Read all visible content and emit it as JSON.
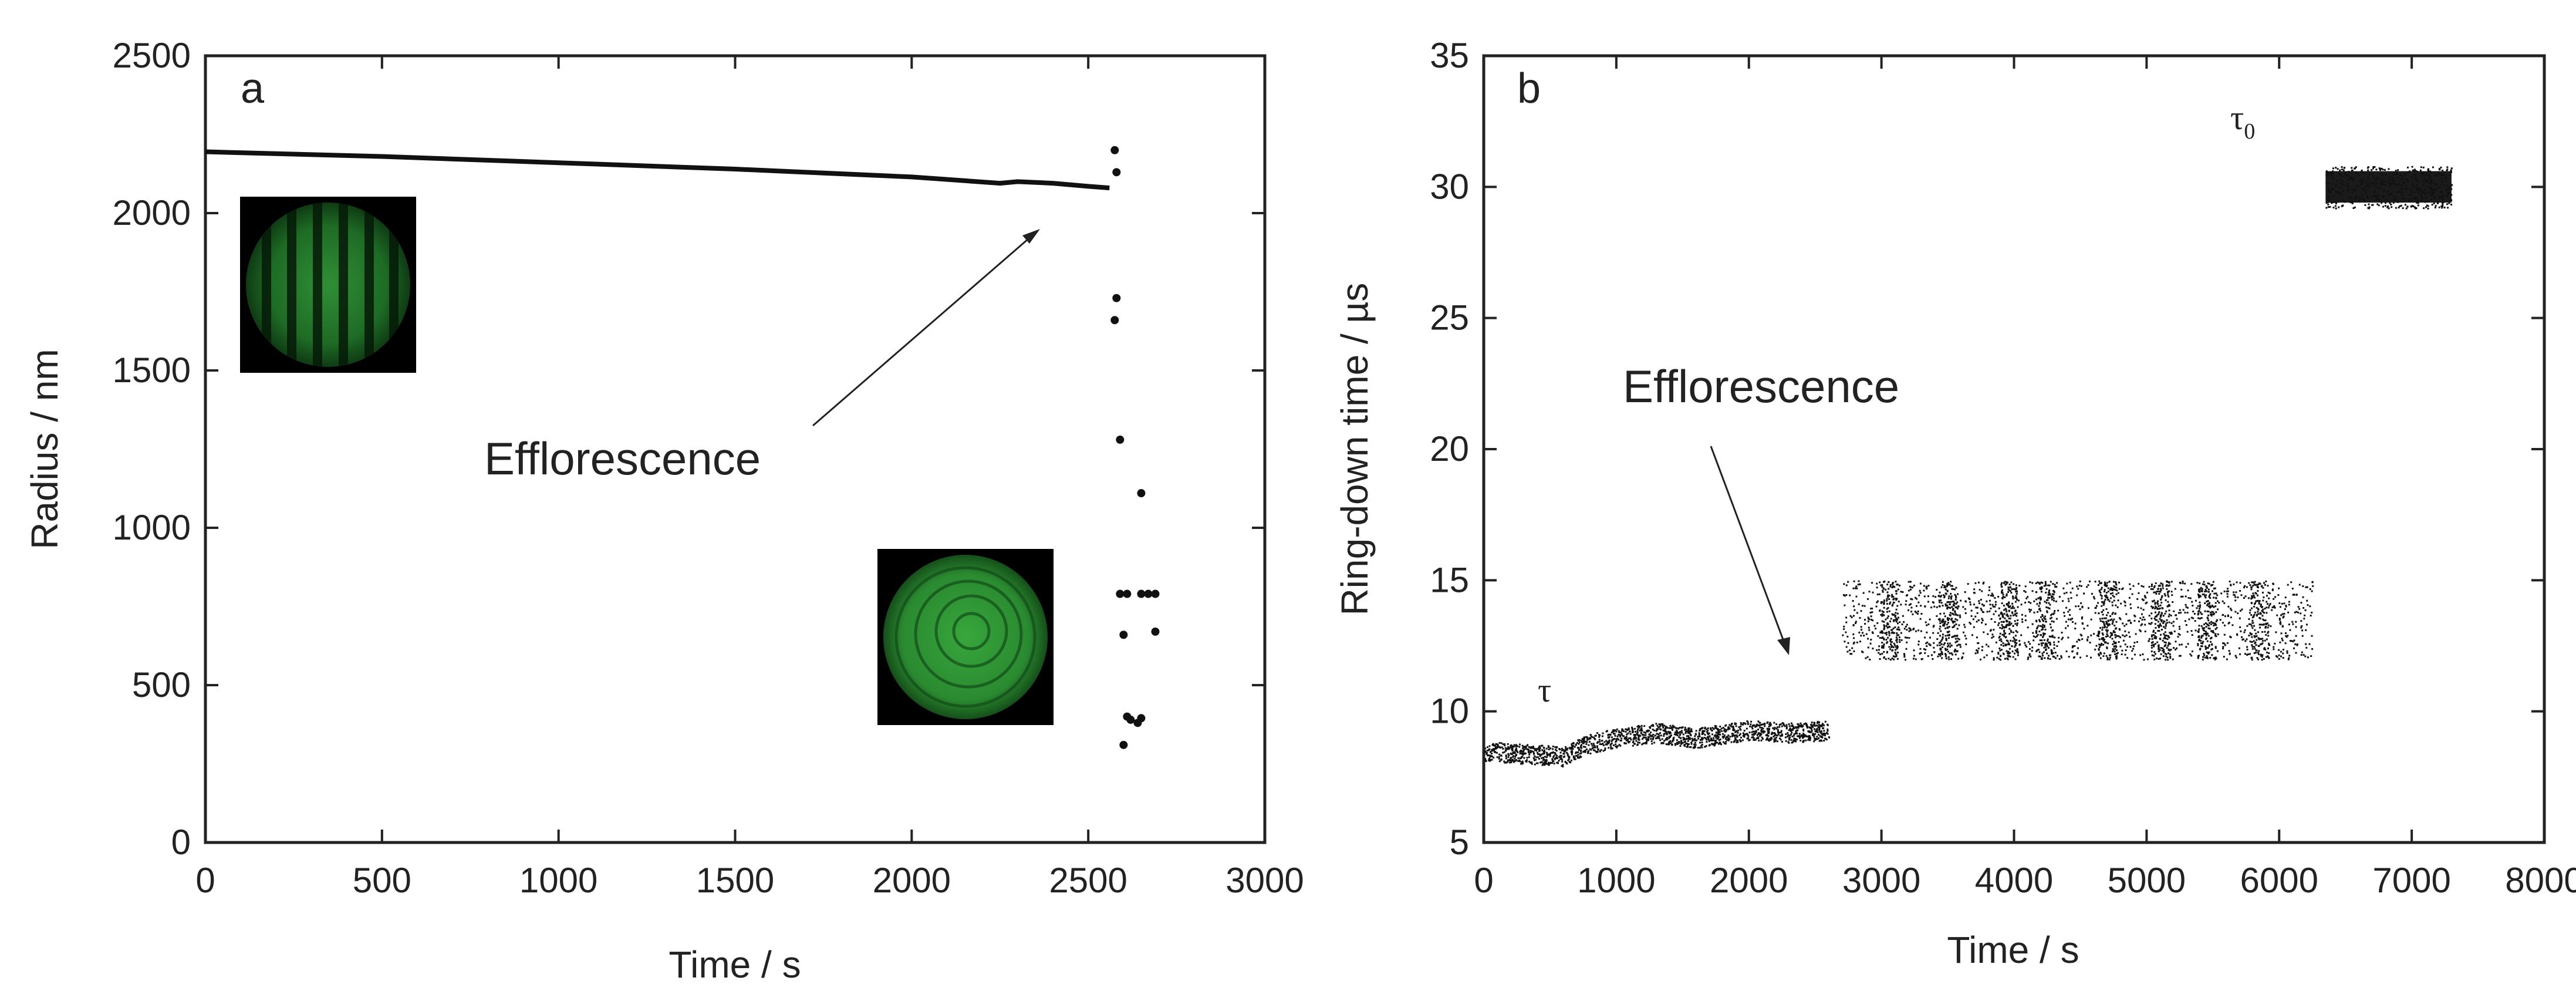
{
  "chart_data": [
    {
      "panel": "a",
      "type": "scatter",
      "xlabel": "Time / s",
      "ylabel": "Radius / nm",
      "xlim": [
        0,
        3000
      ],
      "ylim": [
        0,
        2500
      ],
      "xticks": [
        0,
        500,
        1000,
        1500,
        2000,
        2500,
        3000
      ],
      "yticks": [
        0,
        500,
        1000,
        1500,
        2000,
        2500
      ],
      "series": [
        {
          "name": "radius",
          "x": [
            0,
            500,
            1000,
            1500,
            2000,
            2250,
            2300,
            2400,
            2500,
            2560
          ],
          "y": [
            2195,
            2180,
            2160,
            2140,
            2115,
            2095,
            2100,
            2095,
            2085,
            2080
          ]
        }
      ],
      "scatter_points": {
        "x": [
          2575,
          2580,
          2580,
          2575,
          2590,
          2650,
          2590,
          2610,
          2650,
          2670,
          2690,
          2600,
          2690,
          2610,
          2620,
          2650,
          2640,
          2600
        ],
        "y": [
          2200,
          2130,
          1730,
          1660,
          1280,
          1110,
          790,
          790,
          790,
          790,
          790,
          660,
          670,
          400,
          390,
          395,
          380,
          310
        ]
      },
      "annotations": [
        {
          "text": "Efflorescence",
          "x": 830,
          "y": 1180,
          "arrow_to": [
            2480,
            1930
          ]
        }
      ],
      "insets": [
        {
          "name": "pre-efflorescence-droplet-image",
          "pattern": "fringes"
        },
        {
          "name": "post-efflorescence-particle-image",
          "pattern": "rings"
        }
      ]
    },
    {
      "panel": "b",
      "type": "scatter",
      "xlabel": "Time / s",
      "ylabel": "Ring-down time / µs",
      "xlim": [
        0,
        8000
      ],
      "ylim": [
        5,
        35
      ],
      "xticks": [
        0,
        1000,
        2000,
        3000,
        4000,
        5000,
        6000,
        7000,
        8000
      ],
      "yticks": [
        5,
        10,
        15,
        20,
        25,
        30,
        35
      ],
      "series": [
        {
          "name": "τ",
          "x": [
            0,
            300,
            600,
            800,
            1000,
            1300,
            1600,
            2000,
            2300,
            2600
          ],
          "y": [
            8.5,
            8.4,
            8.3,
            8.8,
            9.0,
            9.2,
            9.0,
            9.3,
            9.2,
            9.3
          ]
        },
        {
          "name": "τ (after efflorescence)",
          "x_range": [
            2700,
            6250
          ],
          "y_range": [
            12.0,
            15.0
          ]
        },
        {
          "name": "τ0",
          "x_range": [
            6350,
            7300
          ],
          "y_range": [
            29.2,
            30.8
          ]
        }
      ],
      "annotations": [
        {
          "text": "Efflorescence",
          "x": 2200,
          "y": 22.2,
          "arrow_to": [
            2550,
            12.2
          ]
        },
        {
          "text": "τ",
          "x": 550,
          "y": 10.0
        },
        {
          "text": "τ",
          "sub": "0",
          "x": 6700,
          "y": 32.7
        }
      ]
    }
  ]
}
